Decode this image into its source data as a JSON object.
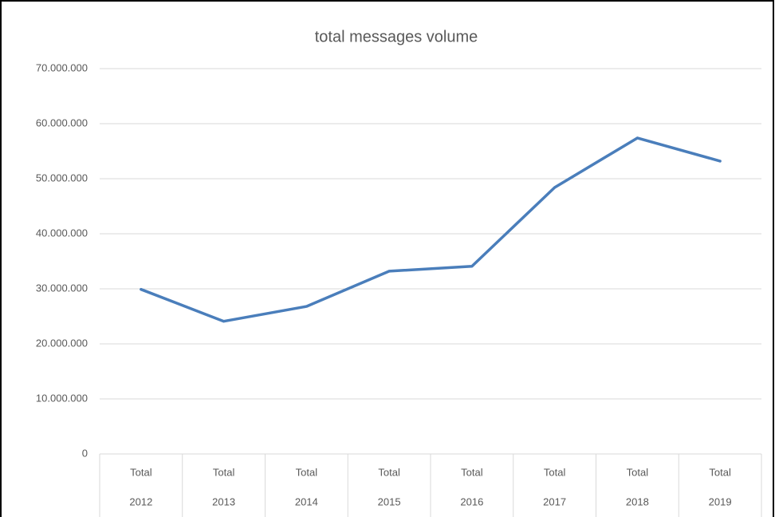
{
  "chart_data": {
    "type": "line",
    "title": "total messages volume",
    "categories": [
      [
        "Total",
        "2012"
      ],
      [
        "Total",
        "2013"
      ],
      [
        "Total",
        "2014"
      ],
      [
        "Total",
        "2015"
      ],
      [
        "Total",
        "2016"
      ],
      [
        "Total",
        "2017"
      ],
      [
        "Total",
        "2018"
      ],
      [
        "Total",
        "2019"
      ]
    ],
    "values": [
      29900000,
      24100000,
      26800000,
      33200000,
      34100000,
      48400000,
      57400000,
      53200000
    ],
    "color": "#4a7ebb",
    "ylim": [
      0,
      70000000
    ],
    "yticks": [
      0,
      {
        "value": 10000000,
        "label": "10.000.000"
      },
      {
        "value": 20000000,
        "label": "20.000.000"
      },
      {
        "value": 30000000,
        "label": "30.000.000"
      },
      {
        "value": 40000000,
        "label": "40.000.000"
      },
      {
        "value": 50000000,
        "label": "50.000.000"
      },
      {
        "value": 60000000,
        "label": "60.000.000"
      },
      {
        "value": 70000000,
        "label": "70.000.000"
      }
    ],
    "grid": true
  }
}
